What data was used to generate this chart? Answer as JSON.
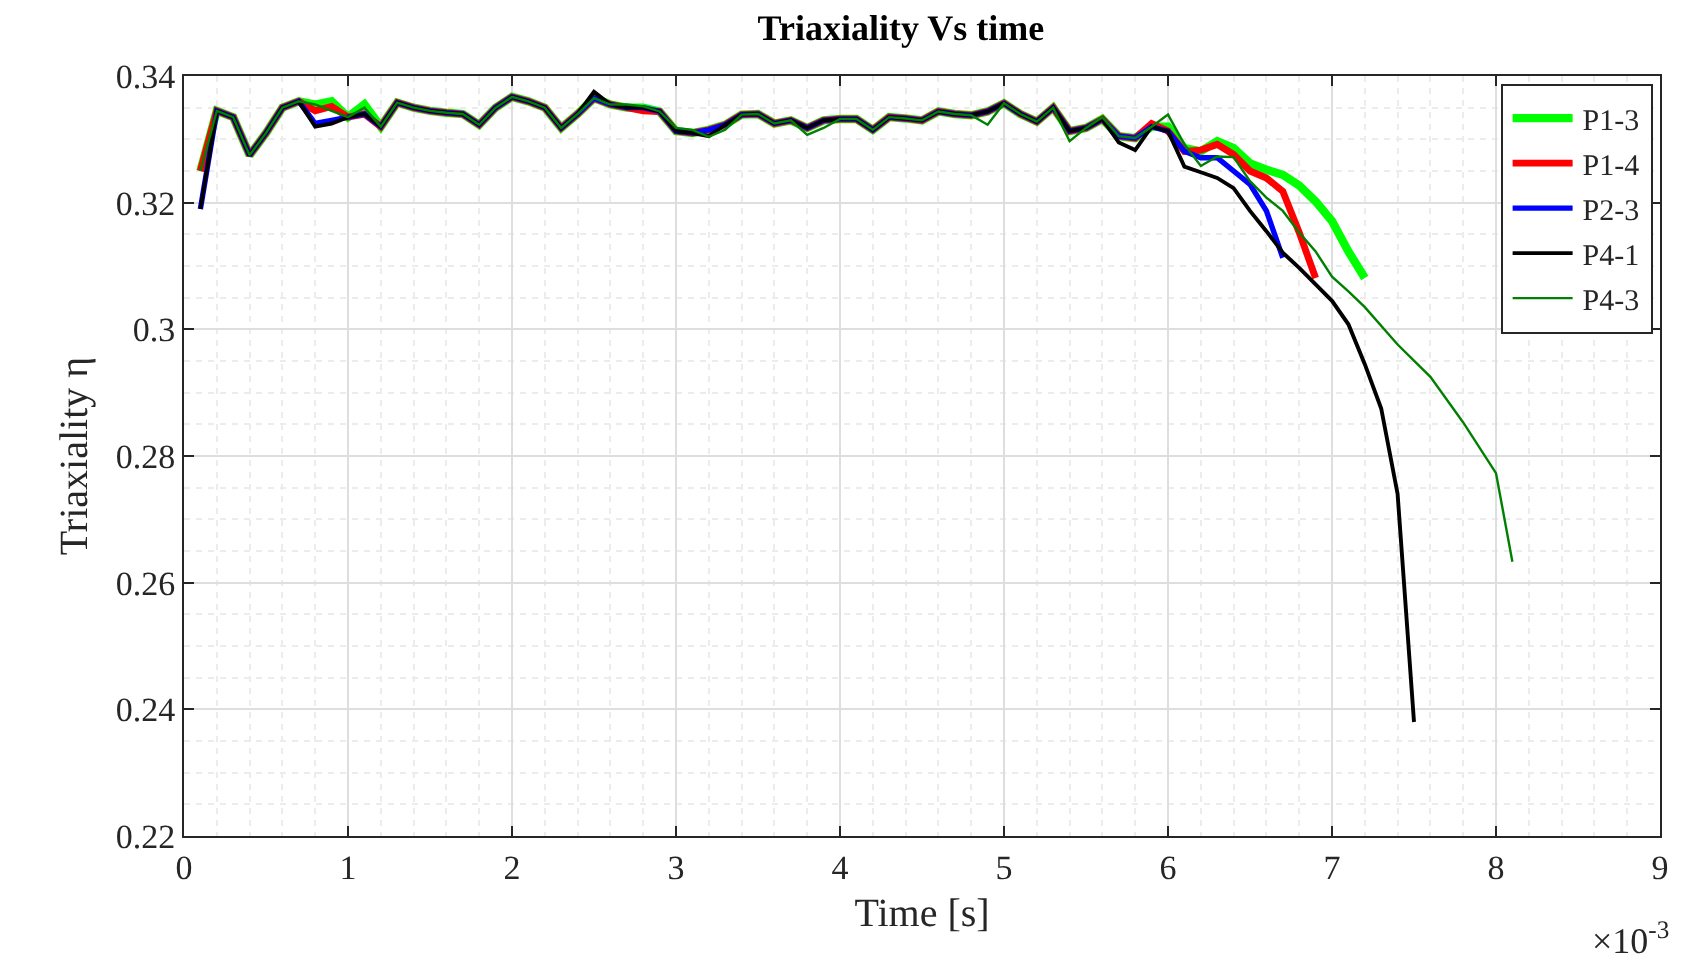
{
  "chart_data": {
    "type": "line",
    "title": "Triaxiality Vs time",
    "xlabel": "Time [s]",
    "ylabel": "Triaxiality η",
    "annotations": [
      "×10$^{-3}$"
    ],
    "xlim": [
      0,
      9
    ],
    "xticks": [
      0,
      1,
      2,
      3,
      4,
      5,
      6,
      7,
      8,
      9
    ],
    "ylim": [
      0.22,
      0.34
    ],
    "yticks": [
      0.22,
      0.24,
      0.26,
      0.28,
      0.3,
      0.32,
      0.34
    ],
    "grid": true,
    "legend": "top right",
    "line_style": "solid",
    "marker": "none",
    "series": [
      {
        "name": "P1-3",
        "color": "#00ff00",
        "x": [
          0.1,
          0.2,
          0.3,
          0.4,
          0.5,
          0.6,
          0.7,
          0.8,
          0.9,
          1.0,
          1.1,
          1.2,
          1.3,
          1.4,
          1.5,
          1.6,
          1.7,
          1.8,
          1.9,
          2.0,
          2.1,
          2.2,
          2.3,
          2.4,
          2.5,
          2.6,
          2.7,
          2.8,
          2.9,
          3.0,
          3.1,
          3.2,
          3.3,
          3.4,
          3.5,
          3.6,
          3.7,
          3.8,
          3.9,
          4.0,
          4.1,
          4.2,
          4.3,
          4.4,
          4.5,
          4.6,
          4.7,
          4.8,
          4.9,
          5.0,
          5.1,
          5.2,
          5.3,
          5.4,
          5.5,
          5.6,
          5.7,
          5.8,
          5.9,
          6.0,
          6.1,
          6.2,
          6.3,
          6.4,
          6.5,
          6.6,
          6.7,
          6.8,
          6.9,
          7.0,
          7.1,
          7.2
        ],
        "values": [
          0.325,
          0.3345,
          0.3335,
          0.3275,
          0.331,
          0.335,
          0.336,
          0.3355,
          0.336,
          0.3335,
          0.3355,
          0.332,
          0.3358,
          0.335,
          0.3345,
          0.3342,
          0.334,
          0.3323,
          0.335,
          0.3367,
          0.336,
          0.335,
          0.3318,
          0.334,
          0.3365,
          0.3355,
          0.335,
          0.335,
          0.3344,
          0.3313,
          0.331,
          0.3315,
          0.3323,
          0.3339,
          0.334,
          0.3325,
          0.333,
          0.3318,
          0.333,
          0.3332,
          0.3332,
          0.3315,
          0.3335,
          0.3333,
          0.333,
          0.3344,
          0.334,
          0.3338,
          0.3344,
          0.3357,
          0.334,
          0.3328,
          0.335,
          0.3313,
          0.3318,
          0.3332,
          0.3305,
          0.3302,
          0.332,
          0.332,
          0.3286,
          0.3281,
          0.3297,
          0.3286,
          0.3262,
          0.3252,
          0.3244,
          0.3227,
          0.3202,
          0.3171,
          0.3123,
          0.3081
        ]
      },
      {
        "name": "P1-4",
        "color": "#ff0000",
        "x": [
          0.1,
          0.2,
          0.3,
          0.4,
          0.5,
          0.6,
          0.7,
          0.8,
          0.9,
          1.0,
          1.1,
          1.2,
          1.3,
          1.4,
          1.5,
          1.6,
          1.7,
          1.8,
          1.9,
          2.0,
          2.1,
          2.2,
          2.3,
          2.4,
          2.5,
          2.6,
          2.7,
          2.8,
          2.9,
          3.0,
          3.1,
          3.2,
          3.3,
          3.4,
          3.5,
          3.6,
          3.7,
          3.8,
          3.9,
          4.0,
          4.1,
          4.2,
          4.3,
          4.4,
          4.5,
          4.6,
          4.7,
          4.8,
          4.9,
          5.0,
          5.1,
          5.2,
          5.3,
          5.4,
          5.5,
          5.6,
          5.7,
          5.8,
          5.9,
          6.0,
          6.1,
          6.2,
          6.3,
          6.4,
          6.5,
          6.6,
          6.7,
          6.8,
          6.9
        ],
        "values": [
          0.325,
          0.3345,
          0.3335,
          0.3275,
          0.331,
          0.335,
          0.336,
          0.3345,
          0.3352,
          0.3335,
          0.334,
          0.332,
          0.3358,
          0.335,
          0.3345,
          0.3342,
          0.334,
          0.3323,
          0.335,
          0.3367,
          0.336,
          0.335,
          0.3318,
          0.334,
          0.3365,
          0.3355,
          0.335,
          0.3345,
          0.3344,
          0.3313,
          0.331,
          0.3315,
          0.3323,
          0.3339,
          0.334,
          0.3325,
          0.333,
          0.3318,
          0.333,
          0.3332,
          0.3332,
          0.3315,
          0.3335,
          0.3333,
          0.333,
          0.3344,
          0.334,
          0.3338,
          0.3344,
          0.3357,
          0.334,
          0.3328,
          0.335,
          0.3313,
          0.3318,
          0.3332,
          0.3305,
          0.3302,
          0.3325,
          0.3313,
          0.3281,
          0.3283,
          0.3292,
          0.3276,
          0.325,
          0.3239,
          0.3218,
          0.3153,
          0.3081
        ]
      },
      {
        "name": "P2-3",
        "color": "#0000ff",
        "x": [
          0.1,
          0.2,
          0.3,
          0.4,
          0.5,
          0.6,
          0.7,
          0.8,
          0.9,
          1.0,
          1.1,
          1.2,
          1.3,
          1.4,
          1.5,
          1.6,
          1.7,
          1.8,
          1.9,
          2.0,
          2.1,
          2.2,
          2.3,
          2.4,
          2.5,
          2.6,
          2.7,
          2.8,
          2.9,
          3.0,
          3.1,
          3.2,
          3.3,
          3.4,
          3.5,
          3.6,
          3.7,
          3.8,
          3.9,
          4.0,
          4.1,
          4.2,
          4.3,
          4.4,
          4.5,
          4.6,
          4.7,
          4.8,
          4.9,
          5.0,
          5.1,
          5.2,
          5.3,
          5.4,
          5.5,
          5.6,
          5.7,
          5.8,
          5.9,
          6.0,
          6.1,
          6.2,
          6.3,
          6.4,
          6.5,
          6.6,
          6.7
        ],
        "values": [
          0.319,
          0.3345,
          0.3335,
          0.3275,
          0.331,
          0.335,
          0.336,
          0.3325,
          0.333,
          0.3335,
          0.334,
          0.332,
          0.3358,
          0.335,
          0.3345,
          0.3342,
          0.334,
          0.3323,
          0.335,
          0.3367,
          0.336,
          0.335,
          0.3318,
          0.334,
          0.3365,
          0.3355,
          0.335,
          0.335,
          0.3344,
          0.3313,
          0.331,
          0.3315,
          0.3323,
          0.3339,
          0.334,
          0.3325,
          0.333,
          0.3318,
          0.333,
          0.3332,
          0.3332,
          0.3315,
          0.3335,
          0.3333,
          0.333,
          0.3344,
          0.334,
          0.3338,
          0.3344,
          0.3357,
          0.334,
          0.3328,
          0.335,
          0.3313,
          0.3318,
          0.3332,
          0.3305,
          0.3302,
          0.332,
          0.3313,
          0.3281,
          0.3271,
          0.3271,
          0.325,
          0.3229,
          0.3187,
          0.3113
        ]
      },
      {
        "name": "P4-1",
        "color": "#000000",
        "x": [
          0.1,
          0.2,
          0.3,
          0.4,
          0.5,
          0.6,
          0.7,
          0.8,
          0.9,
          1.0,
          1.1,
          1.2,
          1.3,
          1.4,
          1.5,
          1.6,
          1.7,
          1.8,
          1.9,
          2.0,
          2.1,
          2.2,
          2.3,
          2.4,
          2.5,
          2.6,
          2.7,
          2.8,
          2.9,
          3.0,
          3.1,
          3.2,
          3.3,
          3.4,
          3.5,
          3.6,
          3.7,
          3.8,
          3.9,
          4.0,
          4.1,
          4.2,
          4.3,
          4.4,
          4.5,
          4.6,
          4.7,
          4.8,
          4.9,
          5.0,
          5.1,
          5.2,
          5.3,
          5.4,
          5.5,
          5.6,
          5.7,
          5.8,
          5.9,
          6.0,
          6.1,
          6.2,
          6.3,
          6.4,
          6.5,
          6.6,
          6.7,
          6.8,
          6.9,
          7.0,
          7.1,
          7.2,
          7.3,
          7.4,
          7.5
        ],
        "values": [
          0.319,
          0.3345,
          0.3335,
          0.3275,
          0.331,
          0.335,
          0.336,
          0.332,
          0.3325,
          0.3335,
          0.334,
          0.332,
          0.3358,
          0.335,
          0.3345,
          0.3342,
          0.334,
          0.3323,
          0.335,
          0.3367,
          0.336,
          0.335,
          0.3318,
          0.334,
          0.3375,
          0.3355,
          0.335,
          0.335,
          0.3344,
          0.3313,
          0.331,
          0.3305,
          0.3323,
          0.3339,
          0.334,
          0.3325,
          0.333,
          0.3318,
          0.333,
          0.3332,
          0.3332,
          0.3315,
          0.3335,
          0.3333,
          0.333,
          0.3344,
          0.334,
          0.3338,
          0.3344,
          0.3357,
          0.334,
          0.3328,
          0.335,
          0.3313,
          0.3318,
          0.3332,
          0.3295,
          0.3283,
          0.332,
          0.3313,
          0.3257,
          0.3248,
          0.3239,
          0.3223,
          0.3187,
          0.3155,
          0.3121,
          0.3097,
          0.3071,
          0.3045,
          0.3008,
          0.2945,
          0.2875,
          0.274,
          0.238
        ]
      },
      {
        "name": "P4-3",
        "color": "#008000",
        "x": [
          0.1,
          0.2,
          0.3,
          0.4,
          0.5,
          0.6,
          0.7,
          0.8,
          0.9,
          1.0,
          1.1,
          1.2,
          1.3,
          1.4,
          1.5,
          1.6,
          1.7,
          1.8,
          1.9,
          2.0,
          2.1,
          2.2,
          2.3,
          2.4,
          2.5,
          2.6,
          2.7,
          2.8,
          2.9,
          3.0,
          3.1,
          3.2,
          3.3,
          3.4,
          3.5,
          3.6,
          3.7,
          3.8,
          3.9,
          4.0,
          4.1,
          4.2,
          4.3,
          4.4,
          4.5,
          4.6,
          4.7,
          4.8,
          4.9,
          5.0,
          5.1,
          5.2,
          5.3,
          5.4,
          5.5,
          5.6,
          5.7,
          5.8,
          5.9,
          6.0,
          6.1,
          6.2,
          6.3,
          6.4,
          6.5,
          6.6,
          6.7,
          6.8,
          6.9,
          7.0,
          7.1,
          7.2,
          7.4,
          7.6,
          7.8,
          8.0,
          8.1
        ],
        "values": [
          0.325,
          0.3345,
          0.3335,
          0.3275,
          0.331,
          0.335,
          0.336,
          0.3355,
          0.3345,
          0.3335,
          0.335,
          0.332,
          0.3358,
          0.335,
          0.3345,
          0.3342,
          0.334,
          0.3323,
          0.335,
          0.3367,
          0.336,
          0.335,
          0.3318,
          0.334,
          0.3365,
          0.3355,
          0.3355,
          0.3352,
          0.3344,
          0.3318,
          0.3315,
          0.3304,
          0.3315,
          0.3339,
          0.334,
          0.3325,
          0.333,
          0.3307,
          0.3318,
          0.3332,
          0.3332,
          0.3315,
          0.3335,
          0.3333,
          0.333,
          0.3344,
          0.334,
          0.3338,
          0.3323,
          0.3357,
          0.334,
          0.3328,
          0.335,
          0.3297,
          0.3318,
          0.3335,
          0.3305,
          0.3302,
          0.332,
          0.3339,
          0.3292,
          0.3258,
          0.3273,
          0.3272,
          0.3234,
          0.3208,
          0.3187,
          0.3153,
          0.3123,
          0.3083,
          0.306,
          0.3035,
          0.2976,
          0.2925,
          0.2853,
          0.2773,
          0.2633
        ]
      }
    ]
  }
}
